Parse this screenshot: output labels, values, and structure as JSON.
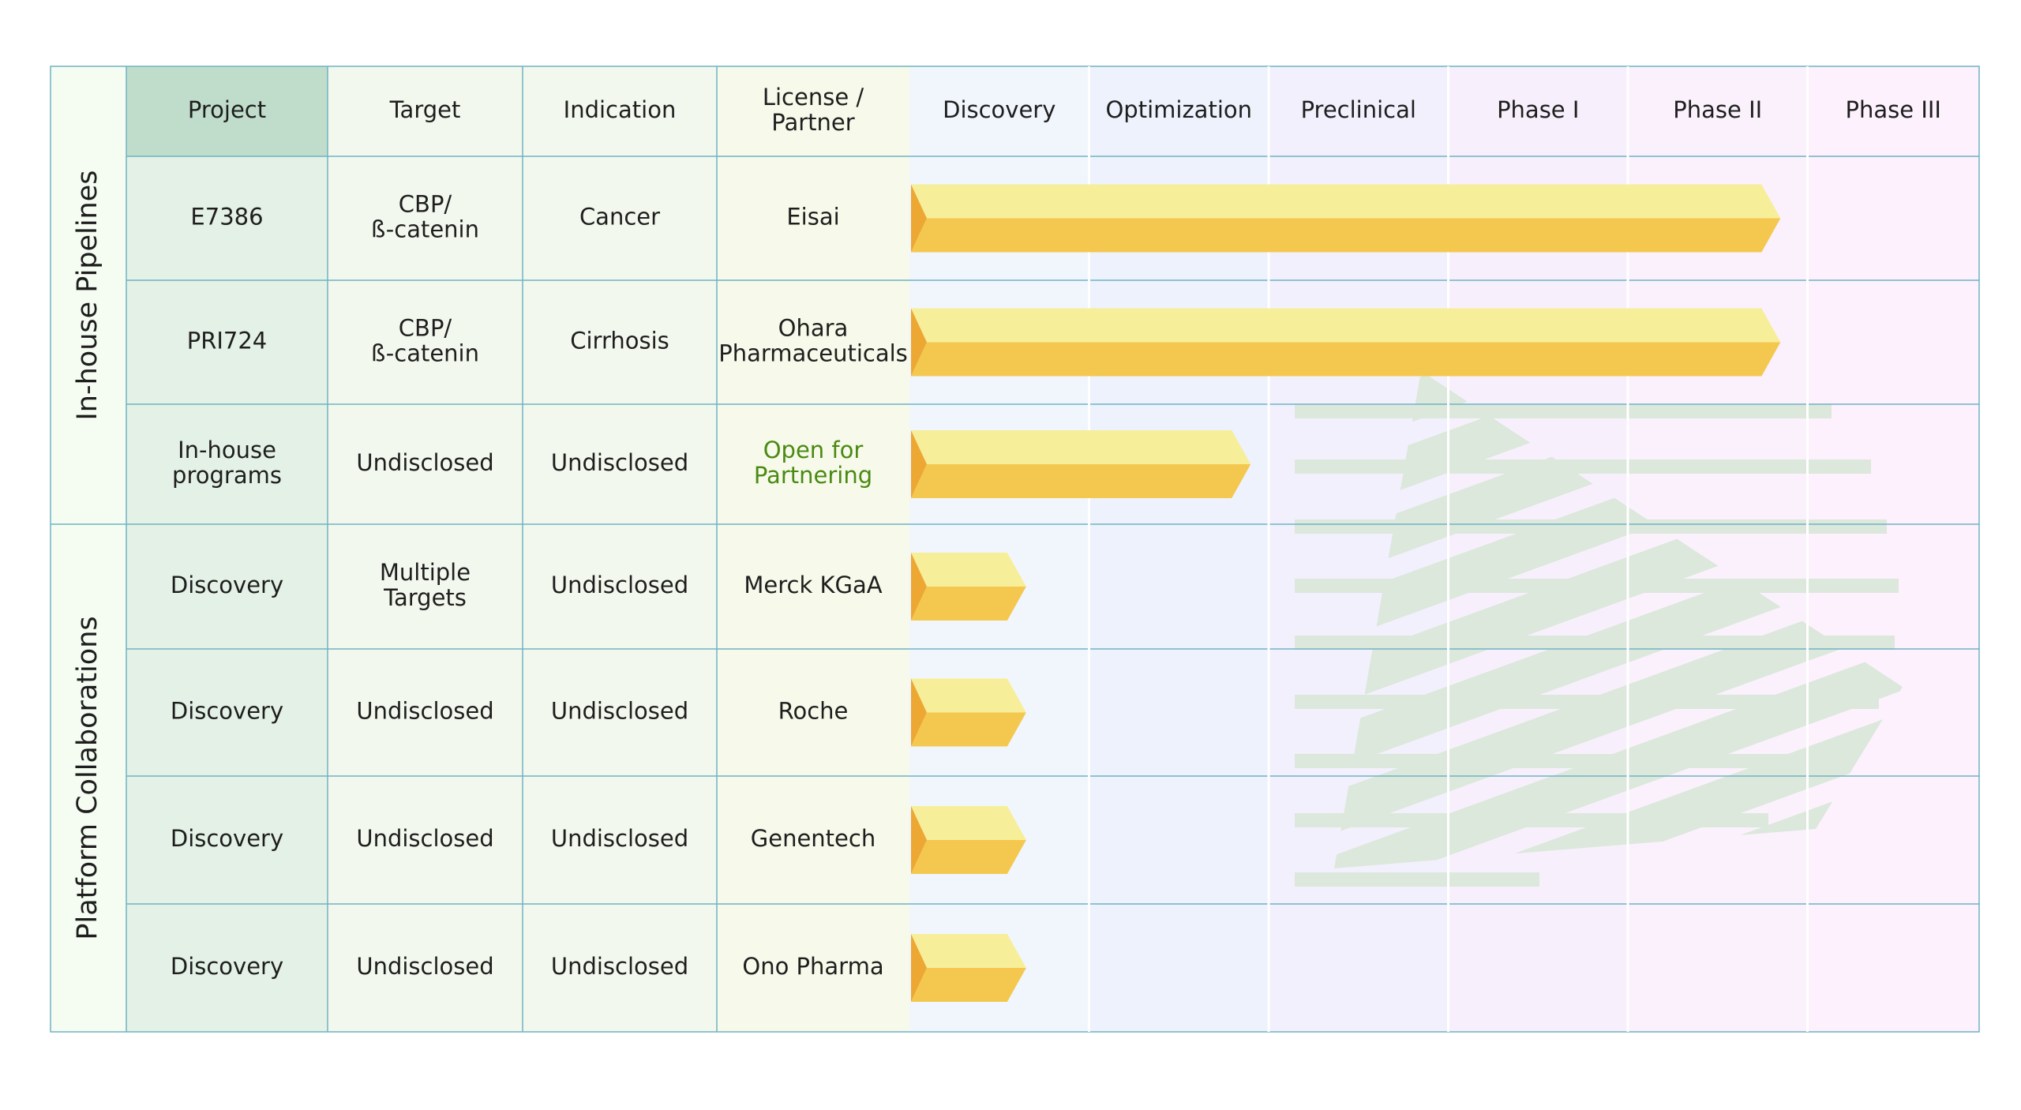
{
  "chart_data": {
    "type": "table",
    "title": "",
    "colors": {
      "bar_top": "#f7ee9a",
      "bar_bottom": "#f4c84f",
      "bar_cap": "#eda833",
      "grid_line": "#6fb3c4",
      "partner_open_text": "#4a8a12",
      "watermark": "#dce8dc"
    },
    "headers": [
      "Project",
      "Target",
      "Indication",
      "License / Partner"
    ],
    "phases": [
      "Discovery",
      "Optimization",
      "Preclinical",
      "Phase I",
      "Phase II",
      "Phase III"
    ],
    "groups": [
      {
        "label": "In-house Pipelines",
        "rows": [
          0,
          1,
          2
        ]
      },
      {
        "label": "Platform Collaborations",
        "rows": [
          3,
          4,
          5,
          6
        ]
      }
    ],
    "rows": [
      {
        "project": "E7386",
        "target": "CBP/ ß-catenin",
        "indication": "Cancer",
        "partner": "Eisai",
        "partner_open": false,
        "progress": 4.85
      },
      {
        "project": "PRI724",
        "target": "CBP/ ß-catenin",
        "indication": "Cirrhosis",
        "partner": "Ohara Pharmaceuticals",
        "partner_open": false,
        "progress": 4.85
      },
      {
        "project": "In-house programs",
        "target": "Undisclosed",
        "indication": "Undisclosed",
        "partner": "Open for Partnering",
        "partner_open": true,
        "progress": 1.9
      },
      {
        "project": "Discovery",
        "target": "Multiple Targets",
        "indication": "Undisclosed",
        "partner": "Merck KGaA",
        "partner_open": false,
        "progress": 0.65
      },
      {
        "project": "Discovery",
        "target": "Undisclosed",
        "indication": "Undisclosed",
        "partner": "Roche",
        "partner_open": false,
        "progress": 0.65
      },
      {
        "project": "Discovery",
        "target": "Undisclosed",
        "indication": "Undisclosed",
        "partner": "Genentech",
        "partner_open": false,
        "progress": 0.65
      },
      {
        "project": "Discovery",
        "target": "Undisclosed",
        "indication": "Undisclosed",
        "partner": "Ono Pharma",
        "partner_open": false,
        "progress": 0.65
      }
    ]
  }
}
